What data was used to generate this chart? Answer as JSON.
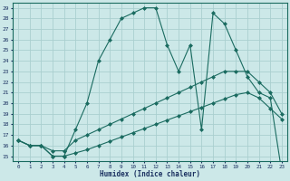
{
  "title": "",
  "xlabel": "Humidex (Indice chaleur)",
  "bg_color": "#cce8e8",
  "grid_color": "#aacfcf",
  "line_color": "#1a6b60",
  "xlim": [
    -0.5,
    23.5
  ],
  "ylim": [
    14.5,
    29.5
  ],
  "xticks": [
    0,
    1,
    2,
    3,
    4,
    5,
    6,
    7,
    8,
    9,
    10,
    11,
    12,
    13,
    14,
    15,
    16,
    17,
    18,
    19,
    20,
    21,
    22,
    23
  ],
  "yticks": [
    15,
    16,
    17,
    18,
    19,
    20,
    21,
    22,
    23,
    24,
    25,
    26,
    27,
    28,
    29
  ],
  "line1_x": [
    0,
    1,
    2,
    3,
    4,
    5,
    6,
    7,
    8,
    9,
    10,
    11,
    12,
    13,
    14,
    15,
    16,
    17,
    18,
    19,
    20,
    21,
    22,
    23
  ],
  "line1_y": [
    16.5,
    16.0,
    16.0,
    15.0,
    15.0,
    17.5,
    20.0,
    24.0,
    26.0,
    28.0,
    28.5,
    29.0,
    29.0,
    25.5,
    23.0,
    25.5,
    17.5,
    28.5,
    27.5,
    25.0,
    22.5,
    21.0,
    20.5,
    13.5
  ],
  "line2_x": [
    0,
    1,
    2,
    3,
    4,
    5,
    6,
    7,
    8,
    9,
    10,
    11,
    12,
    13,
    14,
    15,
    16,
    17,
    18,
    19,
    20,
    21,
    22,
    23
  ],
  "line2_y": [
    16.5,
    16.0,
    16.0,
    15.5,
    15.5,
    16.5,
    17.0,
    17.5,
    18.0,
    18.5,
    19.0,
    19.5,
    20.0,
    20.5,
    21.0,
    21.5,
    22.0,
    22.5,
    23.0,
    23.0,
    23.0,
    22.0,
    21.0,
    19.0
  ],
  "line3_x": [
    0,
    1,
    2,
    3,
    4,
    5,
    6,
    7,
    8,
    9,
    10,
    11,
    12,
    13,
    14,
    15,
    16,
    17,
    18,
    19,
    20,
    21,
    22,
    23
  ],
  "line3_y": [
    16.5,
    16.0,
    16.0,
    15.0,
    15.0,
    15.3,
    15.6,
    16.0,
    16.4,
    16.8,
    17.2,
    17.6,
    18.0,
    18.4,
    18.8,
    19.2,
    19.6,
    20.0,
    20.4,
    20.8,
    21.0,
    20.5,
    19.5,
    18.5
  ]
}
